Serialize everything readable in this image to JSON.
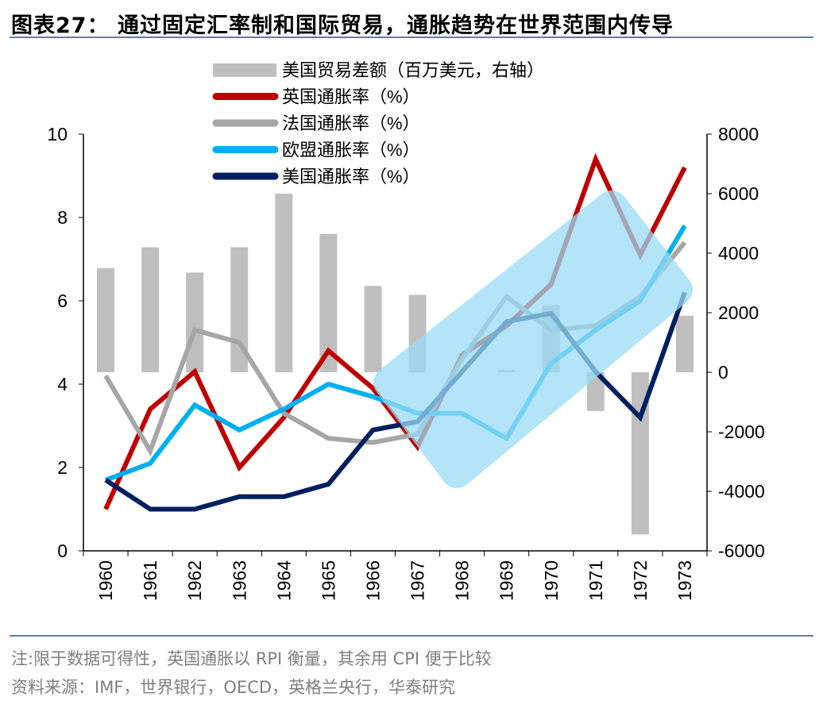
{
  "header": {
    "title": "图表27：  通过固定汇率制和国际贸易，通胀趋势在世界范围内传导"
  },
  "footer": {
    "note": "注:限于数据可得性，英国通胀以 RPI 衡量，其余用 CPI 便于比较",
    "source": "资料来源：IMF，世界银行，OECD，英格兰央行，华泰研究"
  },
  "chart_data": {
    "type": "bar+line",
    "categories": [
      "1960",
      "1961",
      "1962",
      "1963",
      "1964",
      "1965",
      "1966",
      "1967",
      "1968",
      "1969",
      "1970",
      "1971",
      "1972",
      "1973"
    ],
    "left_axis": {
      "ylim": [
        0,
        10
      ],
      "ticks": [
        "0",
        "2",
        "4",
        "6",
        "8",
        "10"
      ]
    },
    "right_axis": {
      "ylim": [
        -6000,
        8000
      ],
      "ticks": [
        "-6000",
        "-4000",
        "-2000",
        "0",
        "2000",
        "4000",
        "6000",
        "8000"
      ]
    },
    "legend_position": "top-center",
    "grid": false,
    "series": [
      {
        "name": "美国贸易差额（百万美元，右轴）",
        "type": "bar",
        "axis": "right",
        "color": "#bfbfbf",
        "values": [
          3500,
          4200,
          3350,
          4200,
          6000,
          4650,
          2900,
          2600,
          0,
          80,
          2250,
          -1300,
          -5450,
          1900
        ]
      },
      {
        "name": "英国通胀率（%）",
        "type": "line",
        "axis": "left",
        "color": "#c00000",
        "values": [
          1.0,
          3.4,
          4.3,
          2.0,
          3.2,
          4.8,
          3.9,
          2.5,
          4.7,
          5.4,
          6.4,
          9.4,
          7.1,
          9.2
        ]
      },
      {
        "name": "法国通胀率（%）",
        "type": "line",
        "axis": "left",
        "color": "#a6a6a6",
        "values": [
          4.2,
          2.4,
          5.3,
          5.0,
          3.3,
          2.7,
          2.6,
          2.8,
          4.6,
          6.1,
          5.3,
          5.4,
          6.1,
          7.4
        ]
      },
      {
        "name": "欧盟通胀率（%）",
        "type": "line",
        "axis": "left",
        "color": "#00b0f0",
        "values": [
          1.7,
          2.1,
          3.5,
          2.9,
          3.4,
          4.0,
          3.7,
          3.3,
          3.3,
          2.7,
          4.5,
          5.3,
          6.0,
          7.8
        ]
      },
      {
        "name": "美国通胀率（%）",
        "type": "line",
        "axis": "left",
        "color": "#002060",
        "values": [
          1.7,
          1.0,
          1.0,
          1.3,
          1.3,
          1.6,
          2.9,
          3.1,
          4.3,
          5.5,
          5.7,
          4.3,
          3.2,
          6.2
        ]
      }
    ],
    "highlight_color": "#9adcf5"
  }
}
